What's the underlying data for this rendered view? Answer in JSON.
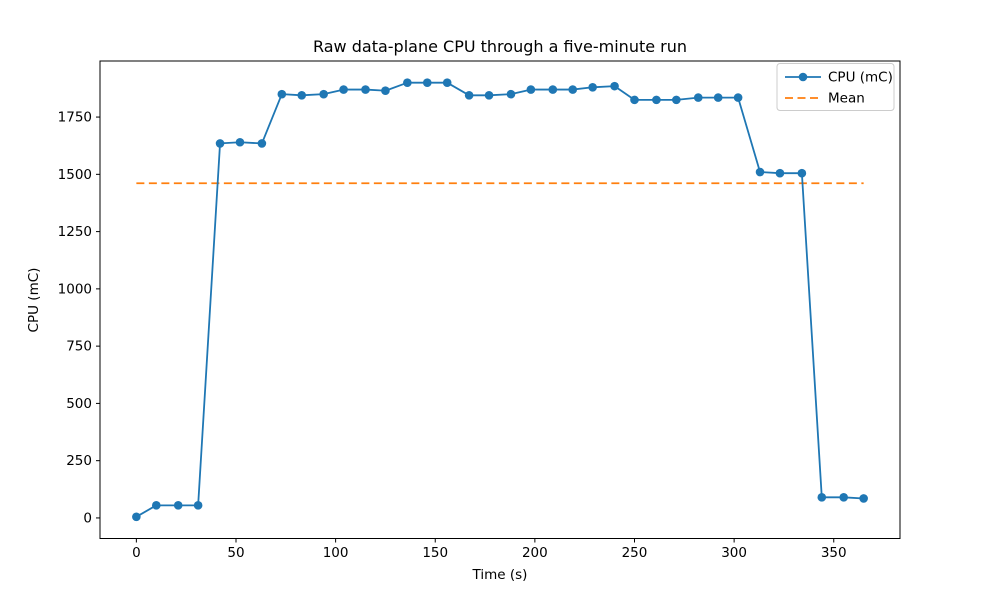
{
  "chart_data": {
    "type": "line",
    "title": "Raw data-plane CPU through a five-minute run",
    "xlabel": "Time (s)",
    "ylabel": "CPU (mC)",
    "xlim": [
      -18.25,
      383.25
    ],
    "ylim": [
      -89.75,
      1994.75
    ],
    "x_ticks": [
      0,
      50,
      100,
      150,
      200,
      250,
      300,
      350
    ],
    "y_ticks": [
      0,
      250,
      500,
      750,
      1000,
      1250,
      1500,
      1750
    ],
    "grid": false,
    "legend_position": "upper right",
    "x": [
      0,
      10,
      21,
      31,
      42,
      52,
      63,
      73,
      83,
      94,
      104,
      115,
      125,
      136,
      146,
      156,
      167,
      177,
      188,
      198,
      209,
      219,
      229,
      240,
      250,
      261,
      271,
      282,
      292,
      302,
      313,
      323,
      334,
      344,
      355,
      365
    ],
    "series": [
      {
        "name": "CPU (mC)",
        "style": "solid-with-markers",
        "color": "#1f77b4",
        "values": [
          5,
          55,
          55,
          55,
          1635,
          1640,
          1635,
          1850,
          1845,
          1850,
          1870,
          1870,
          1865,
          1900,
          1900,
          1900,
          1845,
          1845,
          1850,
          1870,
          1870,
          1870,
          1880,
          1885,
          1825,
          1825,
          1825,
          1835,
          1835,
          1835,
          1510,
          1505,
          1505,
          90,
          90,
          85
        ]
      },
      {
        "name": "Mean",
        "style": "dashed-hline",
        "color": "#ff7f0e",
        "value": 1461,
        "x_start": 0,
        "x_end": 365
      }
    ]
  }
}
